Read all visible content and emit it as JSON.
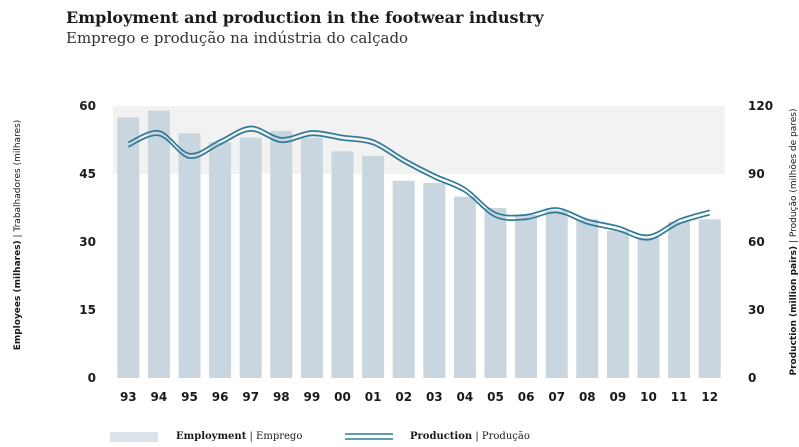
{
  "title": "Employment and production in the footwear industry",
  "subtitle": "Emprego e produção na indústria do calçado",
  "left_axis": {
    "label_bold": "Employees (milhares)",
    "label_rest": " | Trabalhadores (milhares)",
    "ticks": [
      0,
      15,
      30,
      45,
      60
    ]
  },
  "right_axis": {
    "label_bold": "Production (million pairs)",
    "label_rest": " | Produção (milhões de pares)",
    "ticks": [
      0,
      30,
      60,
      90,
      120
    ]
  },
  "legend": {
    "employment_bold": "Employment",
    "employment_rest": "| Emprego",
    "production_bold": "Production",
    "production_rest": "| Produção"
  },
  "colors": {
    "bar": "#c9d6df",
    "line": "#2f7a96",
    "band": "#f2f2f2"
  },
  "chart_data": {
    "type": "bar+line",
    "categories": [
      "93",
      "94",
      "95",
      "96",
      "97",
      "98",
      "99",
      "00",
      "01",
      "02",
      "03",
      "04",
      "05",
      "06",
      "07",
      "08",
      "09",
      "10",
      "11",
      "12"
    ],
    "series": [
      {
        "name": "Employment | Emprego",
        "axis": "left",
        "type": "bar",
        "values": [
          57.5,
          59,
          54,
          52,
          53,
          54.5,
          53,
          50,
          49,
          43.5,
          43,
          40,
          37.5,
          36,
          37,
          35,
          32.5,
          31,
          34.5,
          35
        ]
      },
      {
        "name": "Production | Produção",
        "axis": "right",
        "type": "line",
        "values": [
          103,
          108,
          98,
          104,
          110,
          105,
          108,
          106,
          104,
          96,
          89,
          83,
          72,
          71,
          74,
          69,
          66,
          62,
          69,
          73
        ]
      }
    ],
    "ylim_left": [
      0,
      60
    ],
    "ylim_right": [
      0,
      120
    ],
    "grid": false
  }
}
